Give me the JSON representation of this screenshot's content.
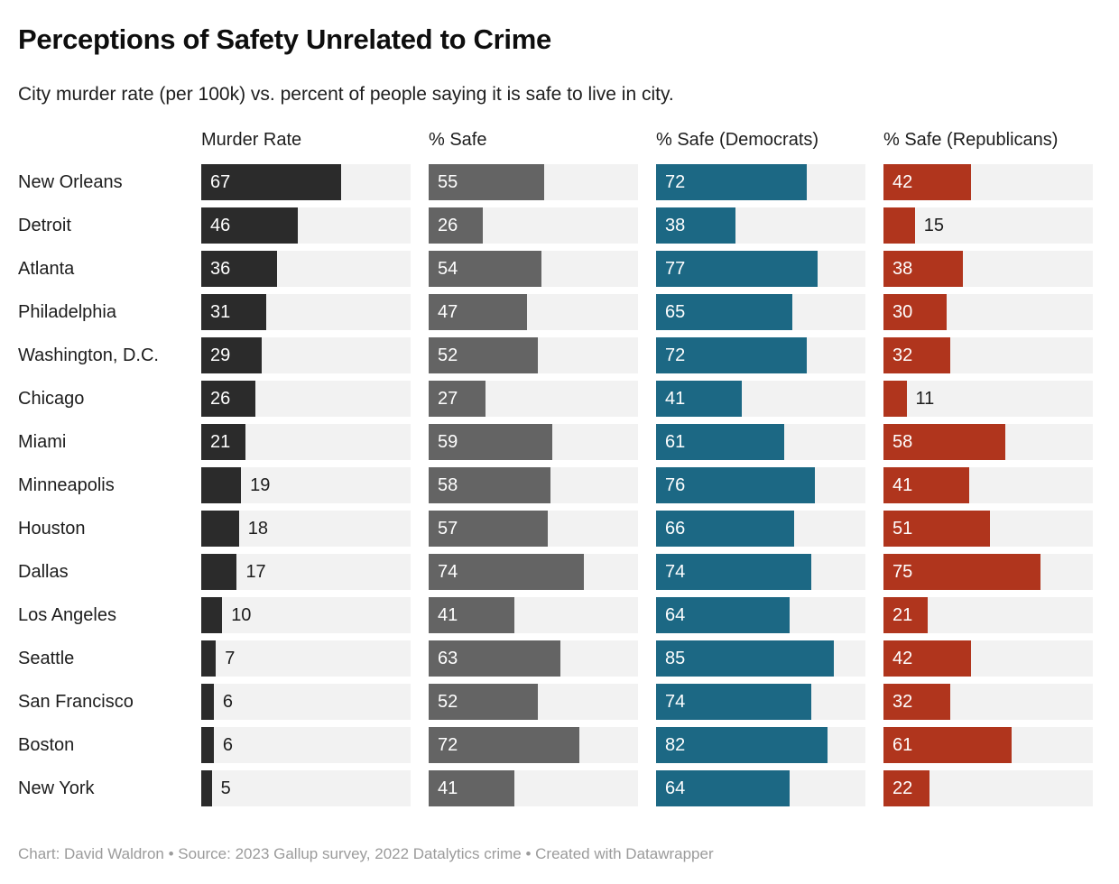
{
  "title": "Perceptions of Safety Unrelated to Crime",
  "subtitle": "City murder rate (per 100k) vs. percent of people saying it is safe to live in city.",
  "footer": "Chart: David Waldron • Source: 2023 Gallup survey, 2022 Datalytics crime • Created with Datawrapper",
  "colors": {
    "track": "#f2f2f2",
    "text": "#1d1d1d",
    "value_inside": "#ffffff",
    "footer_text": "#9b9b9b",
    "murder": "#2b2b2b",
    "safe": "#646464",
    "democrats": "#1c6884",
    "republicans": "#b0351d"
  },
  "chart_data": {
    "type": "bar",
    "orientation": "horizontal",
    "xlim": [
      0,
      100
    ],
    "grid": "off",
    "legend": "none",
    "label_outside_below": 20,
    "title": "Perceptions of Safety Unrelated to Crime",
    "subtitle": "City murder rate (per 100k) vs. percent of people saying it is safe to live in city.",
    "categories": [
      "New Orleans",
      "Detroit",
      "Atlanta",
      "Philadelphia",
      "Washington, D.C.",
      "Chicago",
      "Miami",
      "Minneapolis",
      "Houston",
      "Dallas",
      "Los Angeles",
      "Seattle",
      "San Francisco",
      "Boston",
      "New York"
    ],
    "series": [
      {
        "name": "Murder Rate",
        "color": "#2b2b2b",
        "values": [
          67,
          46,
          36,
          31,
          29,
          26,
          21,
          19,
          18,
          17,
          10,
          7,
          6,
          6,
          5
        ]
      },
      {
        "name": "% Safe",
        "color": "#646464",
        "values": [
          55,
          26,
          54,
          47,
          52,
          27,
          59,
          58,
          57,
          74,
          41,
          63,
          52,
          72,
          41
        ]
      },
      {
        "name": "% Safe (Democrats)",
        "color": "#1c6884",
        "values": [
          72,
          38,
          77,
          65,
          72,
          41,
          61,
          76,
          66,
          74,
          64,
          85,
          74,
          82,
          64
        ]
      },
      {
        "name": "% Safe (Republicans)",
        "color": "#b0351d",
        "values": [
          42,
          15,
          38,
          30,
          32,
          11,
          58,
          41,
          51,
          75,
          21,
          42,
          32,
          61,
          22
        ]
      }
    ]
  }
}
